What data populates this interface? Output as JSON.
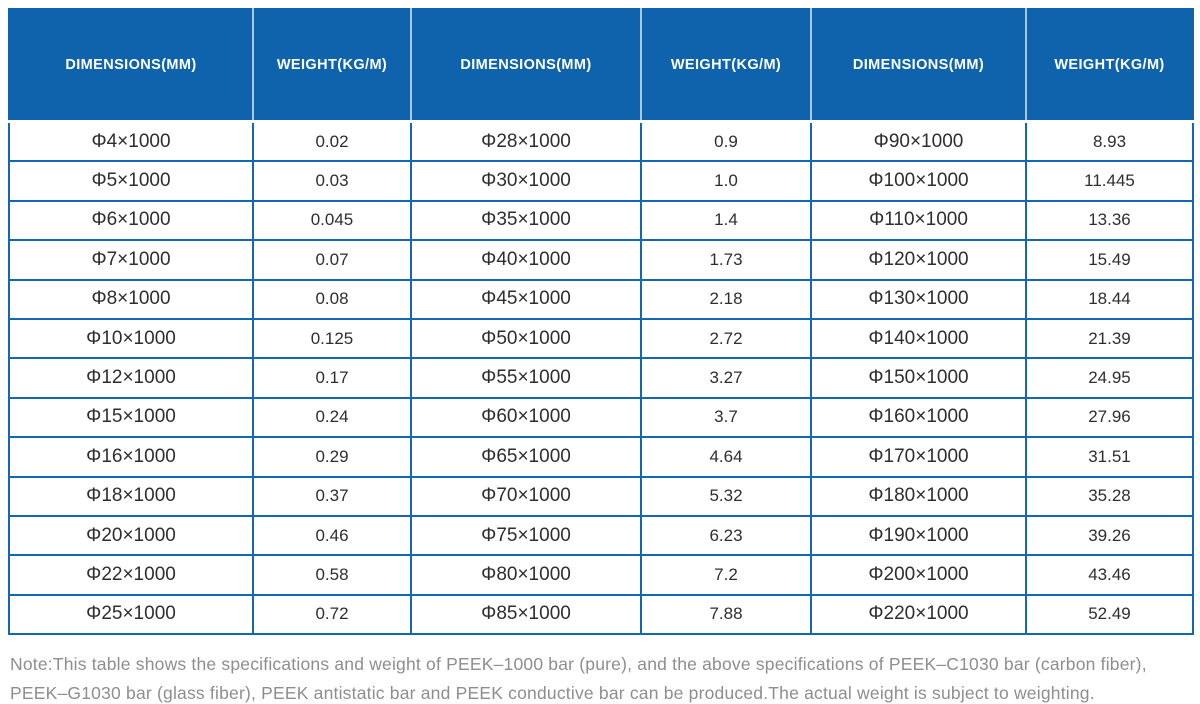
{
  "colors": {
    "header_bg": "#0f63ad",
    "header_text": "#ffffff",
    "grid_border": "#1467b3",
    "cell_text": "#2e2e2e",
    "note_text": "#8e8e8e",
    "page_bg": "#ffffff"
  },
  "table": {
    "headers": [
      "DIMENSIONS(MM)",
      "WEIGHT(KG/M)",
      "DIMENSIONS(MM)",
      "WEIGHT(KG/M)",
      "DIMENSIONS(MM)",
      "WEIGHT(KG/M)"
    ],
    "rows": [
      [
        "Φ4×1000",
        "0.02",
        "Φ28×1000",
        "0.9",
        "Φ90×1000",
        "8.93"
      ],
      [
        "Φ5×1000",
        "0.03",
        "Φ30×1000",
        "1.0",
        "Φ100×1000",
        "11.445"
      ],
      [
        "Φ6×1000",
        "0.045",
        "Φ35×1000",
        "1.4",
        "Φ110×1000",
        "13.36"
      ],
      [
        "Φ7×1000",
        "0.07",
        "Φ40×1000",
        "1.73",
        "Φ120×1000",
        "15.49"
      ],
      [
        "Φ8×1000",
        "0.08",
        "Φ45×1000",
        "2.18",
        "Φ130×1000",
        "18.44"
      ],
      [
        "Φ10×1000",
        "0.125",
        "Φ50×1000",
        "2.72",
        "Φ140×1000",
        "21.39"
      ],
      [
        "Φ12×1000",
        "0.17",
        "Φ55×1000",
        "3.27",
        "Φ150×1000",
        "24.95"
      ],
      [
        "Φ15×1000",
        "0.24",
        "Φ60×1000",
        "3.7",
        "Φ160×1000",
        "27.96"
      ],
      [
        "Φ16×1000",
        "0.29",
        "Φ65×1000",
        "4.64",
        "Φ170×1000",
        "31.51"
      ],
      [
        "Φ18×1000",
        "0.37",
        "Φ70×1000",
        "5.32",
        "Φ180×1000",
        "35.28"
      ],
      [
        "Φ20×1000",
        "0.46",
        "Φ75×1000",
        "6.23",
        "Φ190×1000",
        "39.26"
      ],
      [
        "Φ22×1000",
        "0.58",
        "Φ80×1000",
        "7.2",
        "Φ200×1000",
        "43.46"
      ],
      [
        "Φ25×1000",
        "0.72",
        "Φ85×1000",
        "7.88",
        "Φ220×1000",
        "52.49"
      ]
    ]
  },
  "note": {
    "line1": "Note:This table shows the specifications and weight of PEEK–1000 bar (pure), and the above specifications of PEEK–C1030 bar (carbon fiber),",
    "line2": "PEEK–G1030 bar (glass fiber), PEEK antistatic bar and PEEK conductive bar can be produced.The actual weight is subject to weighting."
  }
}
